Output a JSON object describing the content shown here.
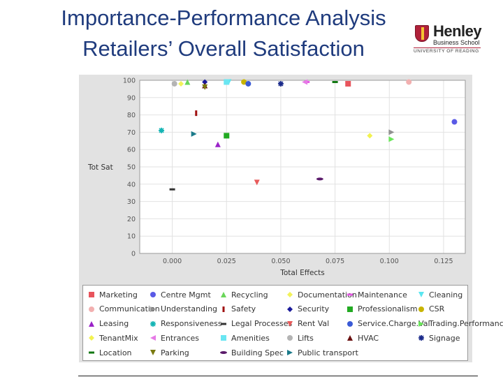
{
  "header": {
    "title_line1": "Importance-Performance Analysis",
    "title_line2": "Retailers’ Overall Satisfaction"
  },
  "logo": {
    "name": "Henley",
    "subtitle": "Business School",
    "university": "UNIVERSITY OF READING"
  },
  "chart_data": {
    "type": "scatter",
    "xlabel": "Total Effects",
    "ylabel": "Tot Sat",
    "xlim": [
      -0.015,
      0.135
    ],
    "ylim": [
      0,
      100
    ],
    "xticks": [
      "0.000",
      "0.025",
      "0.050",
      "0.075",
      "0.100",
      "0.125"
    ],
    "xtick_values": [
      0,
      0.025,
      0.05,
      0.075,
      0.1,
      0.125
    ],
    "yticks": [
      "0",
      "10",
      "20",
      "30",
      "40",
      "50",
      "60",
      "70",
      "80",
      "90",
      "100"
    ],
    "ytick_values": [
      0,
      10,
      20,
      30,
      40,
      50,
      60,
      70,
      80,
      90,
      100
    ],
    "grid": true,
    "legend_position": "bottom",
    "series": [
      {
        "name": "Marketing",
        "marker": "square",
        "color": "#e8545c",
        "x": 0.081,
        "y": 98
      },
      {
        "name": "Centre Mgmt",
        "marker": "circle",
        "color": "#5a5ae6",
        "x": 0.13,
        "y": 76
      },
      {
        "name": "Recycling",
        "marker": "triangle-up",
        "color": "#6ad65a",
        "x": 0.007,
        "y": 99
      },
      {
        "name": "Documentation",
        "marker": "diamond",
        "color": "#f2f25a",
        "x": 0.004,
        "y": 98
      },
      {
        "name": "Maintenance",
        "marker": "dash",
        "color": "#e65ae6",
        "x": 0.062,
        "y": 99
      },
      {
        "name": "Cleaning",
        "marker": "triangle-down",
        "color": "#5ae6f0",
        "x": 0.026,
        "y": 99
      },
      {
        "name": "Communication",
        "marker": "circle",
        "color": "#f2b0b0",
        "x": 0.109,
        "y": 99
      },
      {
        "name": "Understanding",
        "marker": "triangle-right",
        "color": "#909090",
        "x": 0.101,
        "y": 70
      },
      {
        "name": "Safety",
        "marker": "bar",
        "color": "#a01010",
        "x": 0.011,
        "y": 81
      },
      {
        "name": "Security",
        "marker": "diamond",
        "color": "#1a1a9a",
        "x": 0.015,
        "y": 99
      },
      {
        "name": "Professionalism",
        "marker": "square",
        "color": "#22aa22",
        "x": 0.025,
        "y": 68
      },
      {
        "name": "CSR",
        "marker": "circle",
        "color": "#c8b400",
        "x": 0.033,
        "y": 99
      },
      {
        "name": "Leasing",
        "marker": "triangle-up",
        "color": "#9a22c8",
        "x": 0.021,
        "y": 63
      },
      {
        "name": "Responsiveness",
        "marker": "star",
        "color": "#14b4b4",
        "x": -0.005,
        "y": 71
      },
      {
        "name": "Legal Processes",
        "marker": "dash",
        "color": "#333333",
        "x": 0,
        "y": 37
      },
      {
        "name": "Rent Val",
        "marker": "triangle-down",
        "color": "#e85a5a",
        "x": 0.039,
        "y": 41
      },
      {
        "name": "Service.Charge.Val",
        "marker": "circle",
        "color": "#3a5ad6",
        "x": 0.035,
        "y": 98
      },
      {
        "name": "Trading.Performance",
        "marker": "triangle-right",
        "color": "#6ae65a",
        "x": 0.101,
        "y": 66
      },
      {
        "name": "TenantMix",
        "marker": "diamond",
        "color": "#f2f250",
        "x": 0.091,
        "y": 68
      },
      {
        "name": "Entrances",
        "marker": "triangle-left",
        "color": "#e67ae6",
        "x": 0.061,
        "y": 99
      },
      {
        "name": "Amenities",
        "marker": "square",
        "color": "#6ae6f2",
        "x": 0.025,
        "y": 99
      },
      {
        "name": "Lifts",
        "marker": "circle",
        "color": "#b4b4b4",
        "x": 0.001,
        "y": 98
      },
      {
        "name": "HVAC",
        "marker": "triangle-up",
        "color": "#6a1010",
        "x": 0.015,
        "y": 97
      },
      {
        "name": "Signage",
        "marker": "star",
        "color": "#1a2a8a",
        "x": 0.05,
        "y": 98
      },
      {
        "name": "Location",
        "marker": "dash",
        "color": "#117711",
        "x": 0.075,
        "y": 99
      },
      {
        "name": "Parking",
        "marker": "triangle-down",
        "color": "#7a7a10",
        "x": 0.015,
        "y": 96
      },
      {
        "name": "Building Spec",
        "marker": "ellipse",
        "color": "#5a1a6a",
        "x": 0.068,
        "y": 43
      },
      {
        "name": "Public transport",
        "marker": "triangle-right",
        "color": "#1a7a8a",
        "x": 0.01,
        "y": 69
      }
    ]
  }
}
